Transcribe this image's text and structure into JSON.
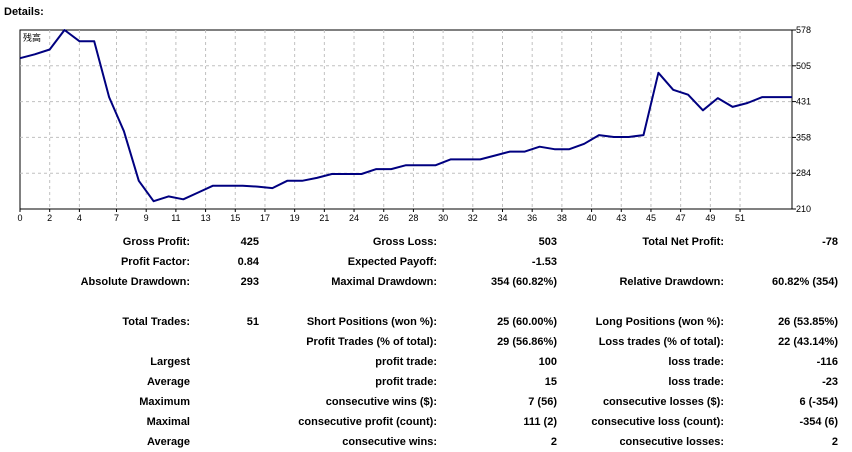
{
  "heading": "Details:",
  "chart_data": {
    "type": "line",
    "title": "",
    "legend": [
      "残高"
    ],
    "x": [
      0,
      1,
      2,
      3,
      4,
      5,
      6,
      7,
      8,
      9,
      10,
      11,
      12,
      13,
      14,
      15,
      16,
      17,
      18,
      19,
      20,
      21,
      22,
      23,
      24,
      25,
      26,
      27,
      28,
      29,
      30,
      31,
      32,
      33,
      34,
      35,
      36,
      37,
      38,
      39,
      40,
      41,
      42,
      43,
      44,
      45,
      46,
      47,
      48,
      49,
      50,
      51,
      52
    ],
    "xticks": [
      "0",
      "2",
      "4",
      "7",
      "9",
      "11",
      "13",
      "15",
      "17",
      "19",
      "21",
      "24",
      "26",
      "28",
      "30",
      "32",
      "34",
      "36",
      "38",
      "40",
      "43",
      "45",
      "47",
      "49",
      "51"
    ],
    "xtick_values": [
      0,
      2,
      4,
      6.5,
      8.5,
      10.5,
      12.5,
      14.5,
      16.5,
      18.5,
      20.5,
      22.5,
      24.5,
      26.5,
      28.5,
      30.5,
      32.5,
      34.5,
      36.5,
      38.5,
      40.5,
      42.5,
      44.5,
      46.5,
      48.5
    ],
    "yticks": [
      "578",
      "505",
      "431",
      "358",
      "284",
      "210"
    ],
    "ylim": [
      210,
      578
    ],
    "series": [
      {
        "color": "#000080",
        "values": [
          520,
          528,
          538,
          578,
          555,
          555,
          440,
          370,
          268,
          226,
          236,
          230,
          244,
          258,
          258,
          258,
          256,
          253,
          268,
          268,
          274,
          282,
          282,
          282,
          292,
          292,
          300,
          300,
          300,
          312,
          312,
          312,
          320,
          328,
          328,
          338,
          333,
          333,
          344,
          362,
          358,
          358,
          362,
          490,
          455,
          445,
          413,
          438,
          420,
          428,
          440,
          440,
          440
        ]
      }
    ],
    "grid": true
  },
  "rows": [
    {
      "c1": "Gross Profit:",
      "c2": "425",
      "c3": "Gross Loss:",
      "c4": "503",
      "c5": "Total Net Profit:",
      "c6": "-78"
    },
    {
      "c1": "Profit Factor:",
      "c2": "0.84",
      "c3": "Expected Payoff:",
      "c4": "-1.53",
      "c5": "",
      "c6": ""
    },
    {
      "c1": "Absolute Drawdown:",
      "c2": "293",
      "c3": "Maximal Drawdown:",
      "c4": "354 (60.82%)",
      "c5": "Relative Drawdown:",
      "c6": "60.82% (354)"
    },
    {
      "c1": "",
      "c2": "",
      "c3": "",
      "c4": "",
      "c5": "",
      "c6": ""
    },
    {
      "c1": "Total Trades:",
      "c2": "51",
      "c3": "Short Positions (won %):",
      "c4": "25 (60.00%)",
      "c5": "Long Positions (won %):",
      "c6": "26 (53.85%)"
    },
    {
      "c1": "",
      "c2": "",
      "c3": "Profit Trades (% of total):",
      "c4": "29 (56.86%)",
      "c5": "Loss trades (% of total):",
      "c6": "22 (43.14%)"
    },
    {
      "c1": "Largest",
      "c2": "",
      "c3": "profit trade:",
      "c4": "100",
      "c5": "loss trade:",
      "c6": "-116"
    },
    {
      "c1": "Average",
      "c2": "",
      "c3": "profit trade:",
      "c4": "15",
      "c5": "loss trade:",
      "c6": "-23"
    },
    {
      "c1": "Maximum",
      "c2": "",
      "c3": "consecutive wins ($):",
      "c4": "7 (56)",
      "c5": "consecutive losses ($):",
      "c6": "6 (-354)"
    },
    {
      "c1": "Maximal",
      "c2": "",
      "c3": "consecutive profit (count):",
      "c4": "111 (2)",
      "c5": "consecutive loss (count):",
      "c6": "-354 (6)"
    },
    {
      "c1": "Average",
      "c2": "",
      "c3": "consecutive wins:",
      "c4": "2",
      "c5": "consecutive losses:",
      "c6": "2"
    }
  ]
}
